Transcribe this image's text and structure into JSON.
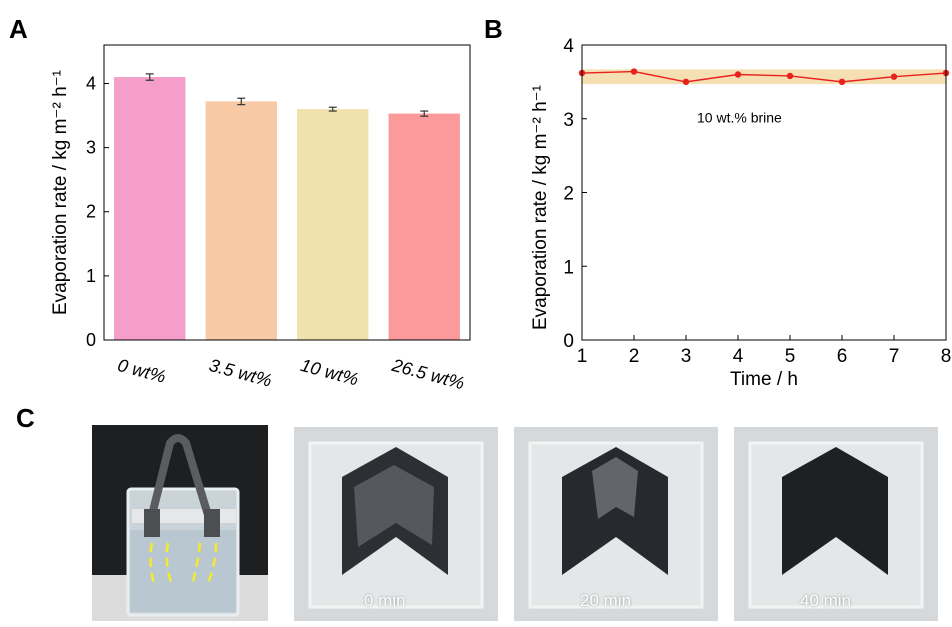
{
  "panels": {
    "a": "A",
    "b": "B",
    "c": "C"
  },
  "chart_data": [
    {
      "type": "bar",
      "ylabel": "Evaporation rate / kg m⁻² h⁻¹",
      "xlabel": "",
      "categories": [
        "0 wt%",
        "3.5 wt%",
        "10 wt%",
        "26.5 wt%"
      ],
      "values": [
        4.1,
        3.72,
        3.6,
        3.53
      ],
      "errors": [
        0.05,
        0.05,
        0.03,
        0.04
      ],
      "colors": [
        "#f49ec9",
        "#f8c9a5",
        "#f1e2ad",
        "#fb9a9a"
      ],
      "ylim": [
        0,
        4.6
      ],
      "yticks": [
        0,
        1,
        2,
        3,
        4
      ]
    },
    {
      "type": "line",
      "xlabel": "Time / h",
      "ylabel": "Evaporation rate / kg m⁻² h⁻¹",
      "annotation": "10 wt.% brine",
      "x": [
        1,
        2,
        3,
        4,
        5,
        6,
        7,
        8
      ],
      "y": [
        3.62,
        3.64,
        3.5,
        3.6,
        3.58,
        3.5,
        3.57,
        3.62
      ],
      "band": [
        3.47,
        3.67
      ],
      "line_color": "#e8211b",
      "band_color": "#f7dfb4",
      "xlim": [
        1,
        8
      ],
      "ylim": [
        0,
        4
      ],
      "xticks": [
        1,
        2,
        3,
        4,
        5,
        6,
        7,
        8
      ],
      "yticks": [
        0,
        1,
        2,
        3,
        4
      ]
    }
  ],
  "photos": {
    "captions": [
      "0 min",
      "20 min",
      "40 min"
    ]
  }
}
